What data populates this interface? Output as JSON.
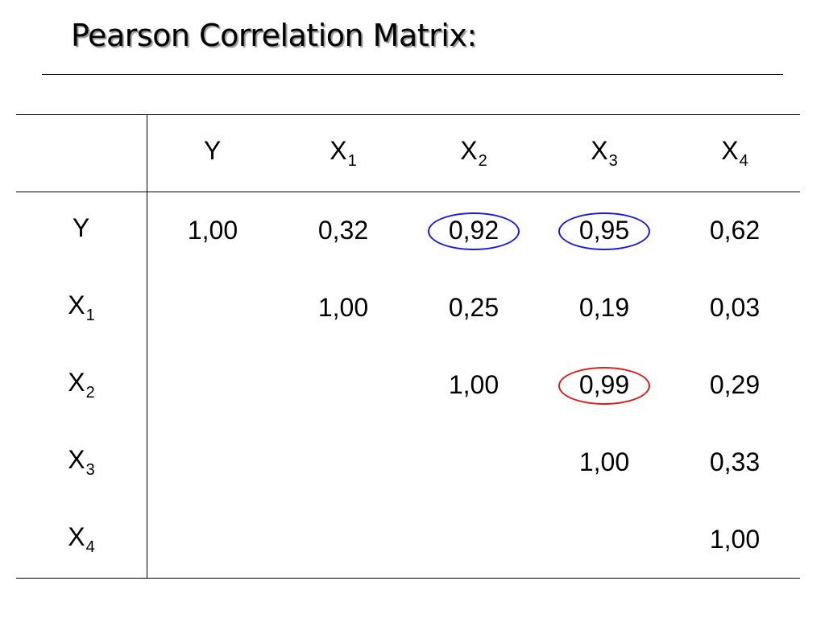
{
  "title": "Pearson Correlation Matrix:",
  "colors": {
    "highlight_blue": "#1a1adc",
    "highlight_red": "#e01818"
  },
  "columns": [
    {
      "base": "Y",
      "sub": ""
    },
    {
      "base": "X",
      "sub": "1"
    },
    {
      "base": "X",
      "sub": "2"
    },
    {
      "base": "X",
      "sub": "3"
    },
    {
      "base": "X",
      "sub": "4"
    }
  ],
  "rows": [
    {
      "label": {
        "base": "Y",
        "sub": ""
      },
      "cells": [
        {
          "value": "1,00"
        },
        {
          "value": "0,32"
        },
        {
          "value": "0,92",
          "highlight": "blue"
        },
        {
          "value": "0,95",
          "highlight": "blue"
        },
        {
          "value": "0,62"
        }
      ]
    },
    {
      "label": {
        "base": "X",
        "sub": "1"
      },
      "cells": [
        {
          "value": ""
        },
        {
          "value": "1,00"
        },
        {
          "value": "0,25"
        },
        {
          "value": "0,19"
        },
        {
          "value": "0,03"
        }
      ]
    },
    {
      "label": {
        "base": "X",
        "sub": "2"
      },
      "cells": [
        {
          "value": ""
        },
        {
          "value": ""
        },
        {
          "value": "1,00"
        },
        {
          "value": "0,99",
          "highlight": "red"
        },
        {
          "value": "0,29"
        }
      ]
    },
    {
      "label": {
        "base": "X",
        "sub": "3"
      },
      "cells": [
        {
          "value": ""
        },
        {
          "value": ""
        },
        {
          "value": ""
        },
        {
          "value": "1,00"
        },
        {
          "value": "0,33"
        }
      ]
    },
    {
      "label": {
        "base": "X",
        "sub": "4"
      },
      "cells": [
        {
          "value": ""
        },
        {
          "value": ""
        },
        {
          "value": ""
        },
        {
          "value": ""
        },
        {
          "value": "1,00"
        }
      ]
    }
  ]
}
